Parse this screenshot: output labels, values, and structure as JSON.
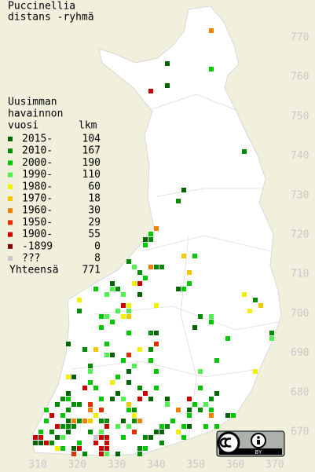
{
  "title": [
    "Puccinellia",
    "distans -ryhmä"
  ],
  "legend": {
    "heading": [
      "Uusimman",
      "havainnon",
      "vuosi"
    ],
    "count_heading": "lkm",
    "items": [
      {
        "label": "2015-",
        "count": 104,
        "color": "#006400"
      },
      {
        "label": "2010-",
        "count": 167,
        "color": "#008c00"
      },
      {
        "label": "2000-",
        "count": 190,
        "color": "#00c800"
      },
      {
        "label": "1990-",
        "count": 110,
        "color": "#50f050"
      },
      {
        "label": "1980-",
        "count": 60,
        "color": "#f0f000"
      },
      {
        "label": "1970-",
        "count": 18,
        "color": "#f0c800"
      },
      {
        "label": "1960-",
        "count": 30,
        "color": "#f08000"
      },
      {
        "label": "1950-",
        "count": 29,
        "color": "#e03000"
      },
      {
        "label": "1900-",
        "count": 55,
        "color": "#c80000"
      },
      {
        "label": "-1899",
        "count": 0,
        "color": "#800000"
      },
      {
        "label": "???",
        "count": 8,
        "color": "#c8c8c8"
      }
    ],
    "total_label": "Yhteensä",
    "total": 771
  },
  "axes": {
    "y_labels": [
      770,
      760,
      750,
      740,
      730,
      720,
      710,
      700,
      690,
      680,
      670
    ],
    "x_labels": [
      310,
      320,
      330,
      340,
      350,
      360,
      370
    ]
  },
  "badge_text": "BY"
}
